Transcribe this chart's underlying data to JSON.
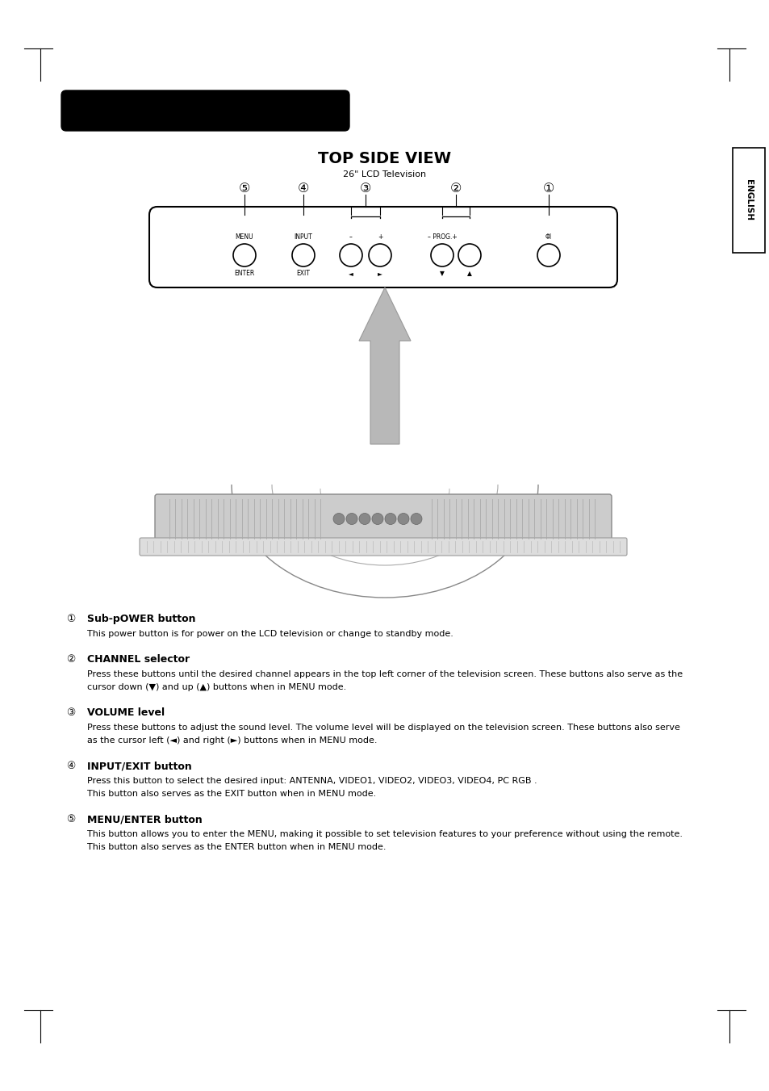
{
  "bg_color": "#ffffff",
  "page_title_text": "TOP SIDE VIEW",
  "page_subtitle": "26\" LCD Television",
  "english_tab_text": "ENGLISH",
  "sections": [
    {
      "num": "①",
      "bold_title": "Sub-pOWER button",
      "lines": [
        "This power button is for power on the LCD television or change to standby mode."
      ]
    },
    {
      "num": "②",
      "bold_title": "CHANNEL selector",
      "lines": [
        "Press these buttons until the desired channel appears in the top left corner of the television screen. These buttons also serve as the",
        "cursor down (▼) and up (▲) buttons when in MENU mode."
      ]
    },
    {
      "num": "③",
      "bold_title": "VOLUME level",
      "lines": [
        "Press these buttons to adjust the sound level. The volume level will be displayed on the television screen. These buttons also serve",
        "as the cursor left (◄) and right (►) buttons when in MENU mode."
      ]
    },
    {
      "num": "④",
      "bold_title": "INPUT/EXIT button",
      "lines": [
        "Press this button to select the desired input: ANTENNA, VIDEO1, VIDEO2, VIDEO3, VIDEO4, PC RGB .",
        "This button also serves as the EXIT button when in MENU mode."
      ]
    },
    {
      "num": "⑤",
      "bold_title": "MENU/ENTER button",
      "lines": [
        "This button allows you to enter the MENU, making it possible to set television features to your preference without using the remote.",
        "This button also serves as the ENTER button when in MENU mode."
      ]
    }
  ]
}
